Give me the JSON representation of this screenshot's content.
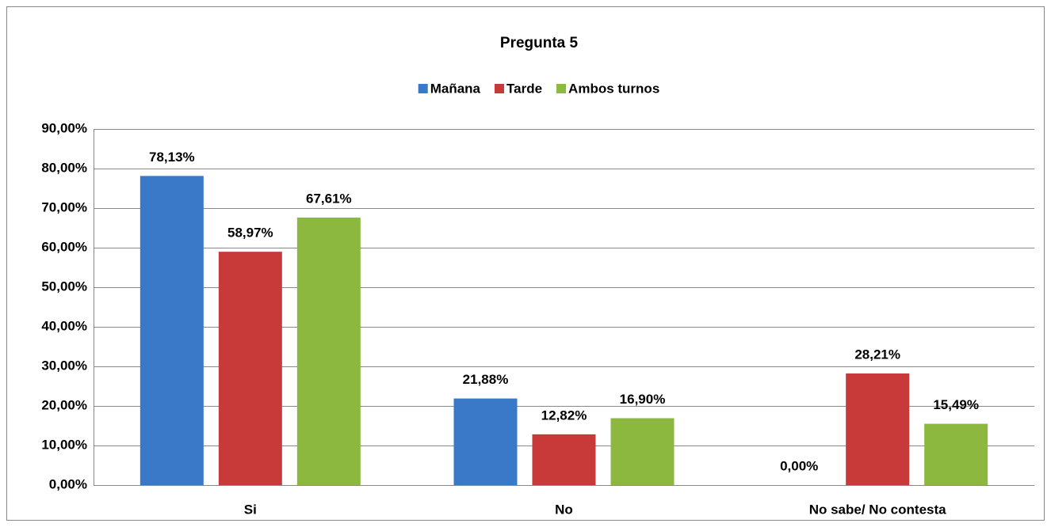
{
  "chart_data": {
    "type": "bar",
    "title": "Pregunta 5",
    "categories": [
      "Si",
      "No",
      "No sabe/ No contesta"
    ],
    "series": [
      {
        "name": "Mañana",
        "color": "#3a78c8",
        "values": [
          78.13,
          21.88,
          0
        ],
        "value_labels": [
          "78,13%",
          "21,88%",
          "0,00%"
        ]
      },
      {
        "name": "Tarde",
        "color": "#c83a3a",
        "values": [
          58.97,
          12.82,
          28.21
        ],
        "value_labels": [
          "58,97%",
          "12,82%",
          "28,21%"
        ]
      },
      {
        "name": "Ambos turnos",
        "color": "#8cb840",
        "values": [
          67.61,
          16.9,
          15.49
        ],
        "value_labels": [
          "67,61%",
          "16,90%",
          "15,49%"
        ]
      }
    ],
    "ylim": [
      0,
      90
    ],
    "yticks": [
      {
        "value": 0,
        "label": "0,00%"
      },
      {
        "value": 10,
        "label": "10,00%"
      },
      {
        "value": 20,
        "label": "20,00%"
      },
      {
        "value": 30,
        "label": "30,00%"
      },
      {
        "value": 40,
        "label": "40,00%"
      },
      {
        "value": 50,
        "label": "50,00%"
      },
      {
        "value": 60,
        "label": "60,00%"
      },
      {
        "value": 70,
        "label": "70,00%"
      },
      {
        "value": 80,
        "label": "80,00%"
      },
      {
        "value": 90,
        "label": "90,00%"
      }
    ],
    "grid": true,
    "legend": "top"
  }
}
